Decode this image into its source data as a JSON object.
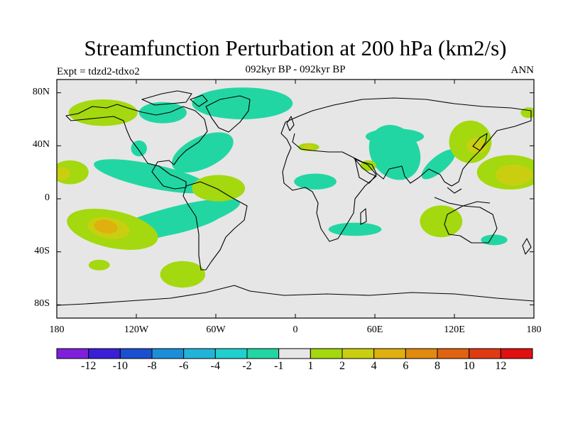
{
  "title": "Streamfunction Perturbation at 200 hPa (km2/s)",
  "subtitle": "092kyr BP - 092kyr BP",
  "left_label": "Expt = tdzd2-tdxo2",
  "right_label": "ANN",
  "map": {
    "projection": "cylindrical-equidistant",
    "lon_range": [
      -180,
      180
    ],
    "lat_range": [
      -90,
      90
    ],
    "background_color": "#e6e6e6",
    "x_ticks": [
      {
        "lon": -180,
        "label": "180"
      },
      {
        "lon": -120,
        "label": "120W"
      },
      {
        "lon": -60,
        "label": "60W"
      },
      {
        "lon": 0,
        "label": "0"
      },
      {
        "lon": 60,
        "label": "60E"
      },
      {
        "lon": 120,
        "label": "120E"
      },
      {
        "lon": 180,
        "label": "180"
      }
    ],
    "y_ticks": [
      {
        "lat": 80,
        "label": "80N"
      },
      {
        "lat": 40,
        "label": "40N"
      },
      {
        "lat": 0,
        "label": "0"
      },
      {
        "lat": -40,
        "label": "40S"
      },
      {
        "lat": -80,
        "label": "80S"
      }
    ]
  },
  "colorbar": {
    "colors": [
      "#7f1fdc",
      "#3a1fd6",
      "#1a4fcf",
      "#1c8ed8",
      "#22b4d8",
      "#22cfcf",
      "#22d6a3",
      "#e6e6e6",
      "#a4d80f",
      "#c9cf10",
      "#dfb00e",
      "#e08a10",
      "#df6210",
      "#e03a12",
      "#e00f10"
    ],
    "labels": [
      "-12",
      "-10",
      "-8",
      "-6",
      "-4",
      "-2",
      "-1",
      "1",
      "2",
      "4",
      "6",
      "8",
      "10",
      "12"
    ]
  },
  "field_regions": [
    {
      "level": "-2",
      "color": "#22d6a3",
      "lon": 75,
      "lat": 35,
      "rlon": 18,
      "rlat": 22,
      "rot": -35
    },
    {
      "level": "-1",
      "color": "#22d6a3",
      "lon": 108,
      "lat": 26,
      "rlon": 16,
      "rlat": 6,
      "rot": -40
    },
    {
      "level": "-1",
      "color": "#22d6a3",
      "lon": 75,
      "lat": 47,
      "rlon": 22,
      "rlat": 6,
      "rot": 0
    },
    {
      "level": "-1",
      "color": "#22d6a3",
      "lon": -40,
      "lat": 72,
      "rlon": 38,
      "rlat": 12,
      "rot": 0
    },
    {
      "level": "-1",
      "color": "#22d6a3",
      "lon": -100,
      "lat": 65,
      "rlon": 18,
      "rlat": 8,
      "rot": 0
    },
    {
      "level": "-1",
      "color": "#22d6a3",
      "lon": -118,
      "lat": 38,
      "rlon": 6,
      "rlat": 6,
      "rot": 0
    },
    {
      "level": "-1",
      "color": "#22d6a3",
      "lon": -70,
      "lat": 35,
      "rlon": 25,
      "rlat": 12,
      "rot": -25
    },
    {
      "level": "-1",
      "color": "#22d6a3",
      "lon": -108,
      "lat": 17,
      "rlon": 45,
      "rlat": 9,
      "rot": 12
    },
    {
      "level": "-1",
      "color": "#22d6a3",
      "lon": -95,
      "lat": -17,
      "rlon": 55,
      "rlat": 10,
      "rot": -15
    },
    {
      "level": "-2",
      "color": "#22d6a3",
      "lon": -85,
      "lat": -20,
      "rlon": 30,
      "rlat": 5,
      "rot": -15
    },
    {
      "level": "-1",
      "color": "#22d6a3",
      "lon": 15,
      "lat": 13,
      "rlon": 16,
      "rlat": 6,
      "rot": 0
    },
    {
      "level": "-1",
      "color": "#22d6a3",
      "lon": 45,
      "lat": -23,
      "rlon": 20,
      "rlat": 5,
      "rot": 0
    },
    {
      "level": "-1",
      "color": "#22d6a3",
      "lon": 150,
      "lat": -31,
      "rlon": 10,
      "rlat": 4,
      "rot": 0
    },
    {
      "level": "1",
      "color": "#a4d80f",
      "lon": -138,
      "lat": -23,
      "rlon": 35,
      "rlat": 14,
      "rot": 12
    },
    {
      "level": "2",
      "color": "#c9cf10",
      "lon": -141,
      "lat": -22,
      "rlon": 16,
      "rlat": 8,
      "rot": 10
    },
    {
      "level": "4",
      "color": "#dfb00e",
      "lon": -143,
      "lat": -21,
      "rlon": 9,
      "rlat": 5,
      "rot": 10
    },
    {
      "level": "1",
      "color": "#a4d80f",
      "lon": -85,
      "lat": -57,
      "rlon": 17,
      "rlat": 10,
      "rot": 0
    },
    {
      "level": "1",
      "color": "#a4d80f",
      "lon": -148,
      "lat": -50,
      "rlon": 8,
      "rlat": 4,
      "rot": 0
    },
    {
      "level": "1",
      "color": "#a4d80f",
      "lon": -58,
      "lat": 8,
      "rlon": 20,
      "rlat": 10,
      "rot": 0
    },
    {
      "level": "1",
      "color": "#a4d80f",
      "lon": -145,
      "lat": 65,
      "rlon": 26,
      "rlat": 10,
      "rot": 0
    },
    {
      "level": "1",
      "color": "#a4d80f",
      "lon": -170,
      "lat": 20,
      "rlon": 14,
      "rlat": 9,
      "rot": 0
    },
    {
      "level": "2",
      "color": "#c9cf10",
      "lon": -176,
      "lat": 19,
      "rlon": 6,
      "rlat": 5,
      "rot": 0
    },
    {
      "level": "1",
      "color": "#a4d80f",
      "lon": 162,
      "lat": 20,
      "rlon": 25,
      "rlat": 13,
      "rot": 0
    },
    {
      "level": "2",
      "color": "#c9cf10",
      "lon": 165,
      "lat": 18,
      "rlon": 14,
      "rlat": 8,
      "rot": 0
    },
    {
      "level": "1",
      "color": "#a4d80f",
      "lon": 132,
      "lat": 43,
      "rlon": 16,
      "rlat": 16,
      "rot": 0
    },
    {
      "level": "2",
      "color": "#c9cf10",
      "lon": 137,
      "lat": 40,
      "rlon": 8,
      "rlat": 6,
      "rot": 0
    },
    {
      "level": "1",
      "color": "#a4d80f",
      "lon": 110,
      "lat": -17,
      "rlon": 16,
      "rlat": 12,
      "rot": 0
    },
    {
      "level": "1",
      "color": "#a4d80f",
      "lon": 10,
      "lat": 39,
      "rlon": 8,
      "rlat": 3,
      "rot": 0
    },
    {
      "level": "2",
      "color": "#c9cf10",
      "lon": 10,
      "lat": 39,
      "rlon": 4,
      "rlat": 2,
      "rot": 0
    },
    {
      "level": "1",
      "color": "#a4d80f",
      "lon": 55,
      "lat": 25,
      "rlon": 6,
      "rlat": 4,
      "rot": 0
    },
    {
      "level": "1",
      "color": "#a4d80f",
      "lon": 176,
      "lat": 65,
      "rlon": 6,
      "rlat": 4,
      "rot": 0
    }
  ]
}
